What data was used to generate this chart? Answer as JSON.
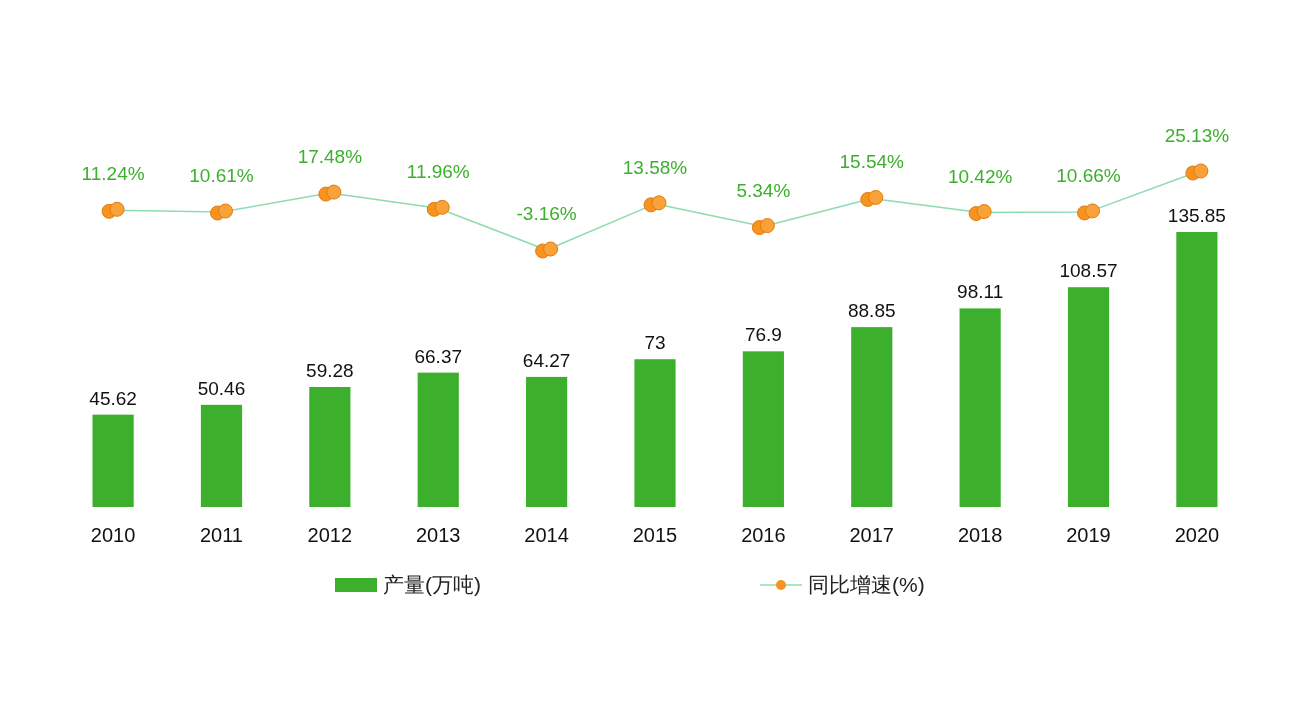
{
  "chart_data": {
    "type": "bar",
    "categories": [
      "2010",
      "2011",
      "2012",
      "2013",
      "2014",
      "2015",
      "2016",
      "2017",
      "2018",
      "2019",
      "2020"
    ],
    "series": [
      {
        "name": "产量(万吨)",
        "color": "#3cb02c",
        "values": [
          45.62,
          50.46,
          59.28,
          66.37,
          64.27,
          73,
          76.9,
          88.85,
          98.11,
          108.57,
          135.85
        ]
      },
      {
        "name": "同比增速(%)",
        "type": "line",
        "axis": "y2",
        "color": "#8ddcb0",
        "values": [
          11.24,
          10.61,
          17.48,
          11.96,
          -3.16,
          13.58,
          5.34,
          15.54,
          10.42,
          10.66,
          25.13
        ],
        "value_labels": [
          "11.24%",
          "10.61%",
          "17.48%",
          "11.96%",
          "-3.16%",
          "13.58%",
          "5.34%",
          "15.54%",
          "10.42%",
          "10.66%",
          "25.13%"
        ]
      }
    ],
    "data_labels": true,
    "legend": "bottom",
    "tick_labels": "x"
  }
}
